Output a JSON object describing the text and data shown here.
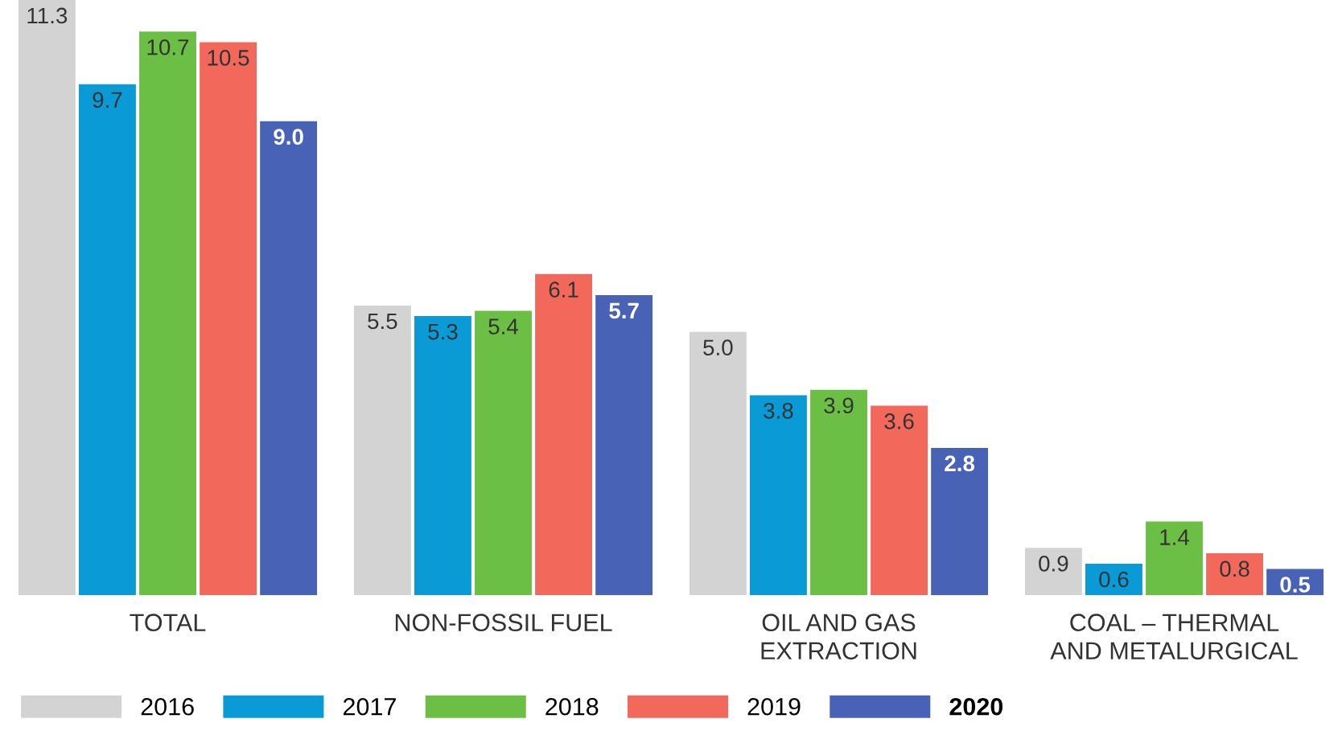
{
  "chart_data": {
    "type": "bar",
    "categories": [
      "TOTAL",
      "NON-FOSSIL FUEL",
      "OIL AND GAS\nEXTRACTION",
      "COAL – THERMAL\nAND METALURGICAL"
    ],
    "series": [
      {
        "name": "2016",
        "color": "#d3d3d3",
        "values": [
          11.3,
          5.5,
          5.0,
          0.9
        ],
        "value_labels": [
          "11.3",
          "5.5",
          "5.0",
          "0.9"
        ]
      },
      {
        "name": "2017",
        "color": "#0a9ad6",
        "values": [
          9.7,
          5.3,
          3.8,
          0.6
        ],
        "value_labels": [
          "9.7",
          "5.3",
          "3.8",
          "0.6"
        ]
      },
      {
        "name": "2018",
        "color": "#6cbf45",
        "values": [
          10.7,
          5.4,
          3.9,
          1.4
        ],
        "value_labels": [
          "10.7",
          "5.4",
          "3.9",
          "1.4"
        ]
      },
      {
        "name": "2019",
        "color": "#f2695c",
        "values": [
          10.5,
          6.1,
          3.6,
          0.8
        ],
        "value_labels": [
          "10.5",
          "6.1",
          "3.6",
          "0.8"
        ]
      },
      {
        "name": "2020",
        "color": "#4862b5",
        "values": [
          9.0,
          5.7,
          2.8,
          0.5
        ],
        "value_labels": [
          "9.0",
          "5.7",
          "2.8",
          "0.5"
        ]
      }
    ],
    "grid": false,
    "legend": "bottom left"
  }
}
